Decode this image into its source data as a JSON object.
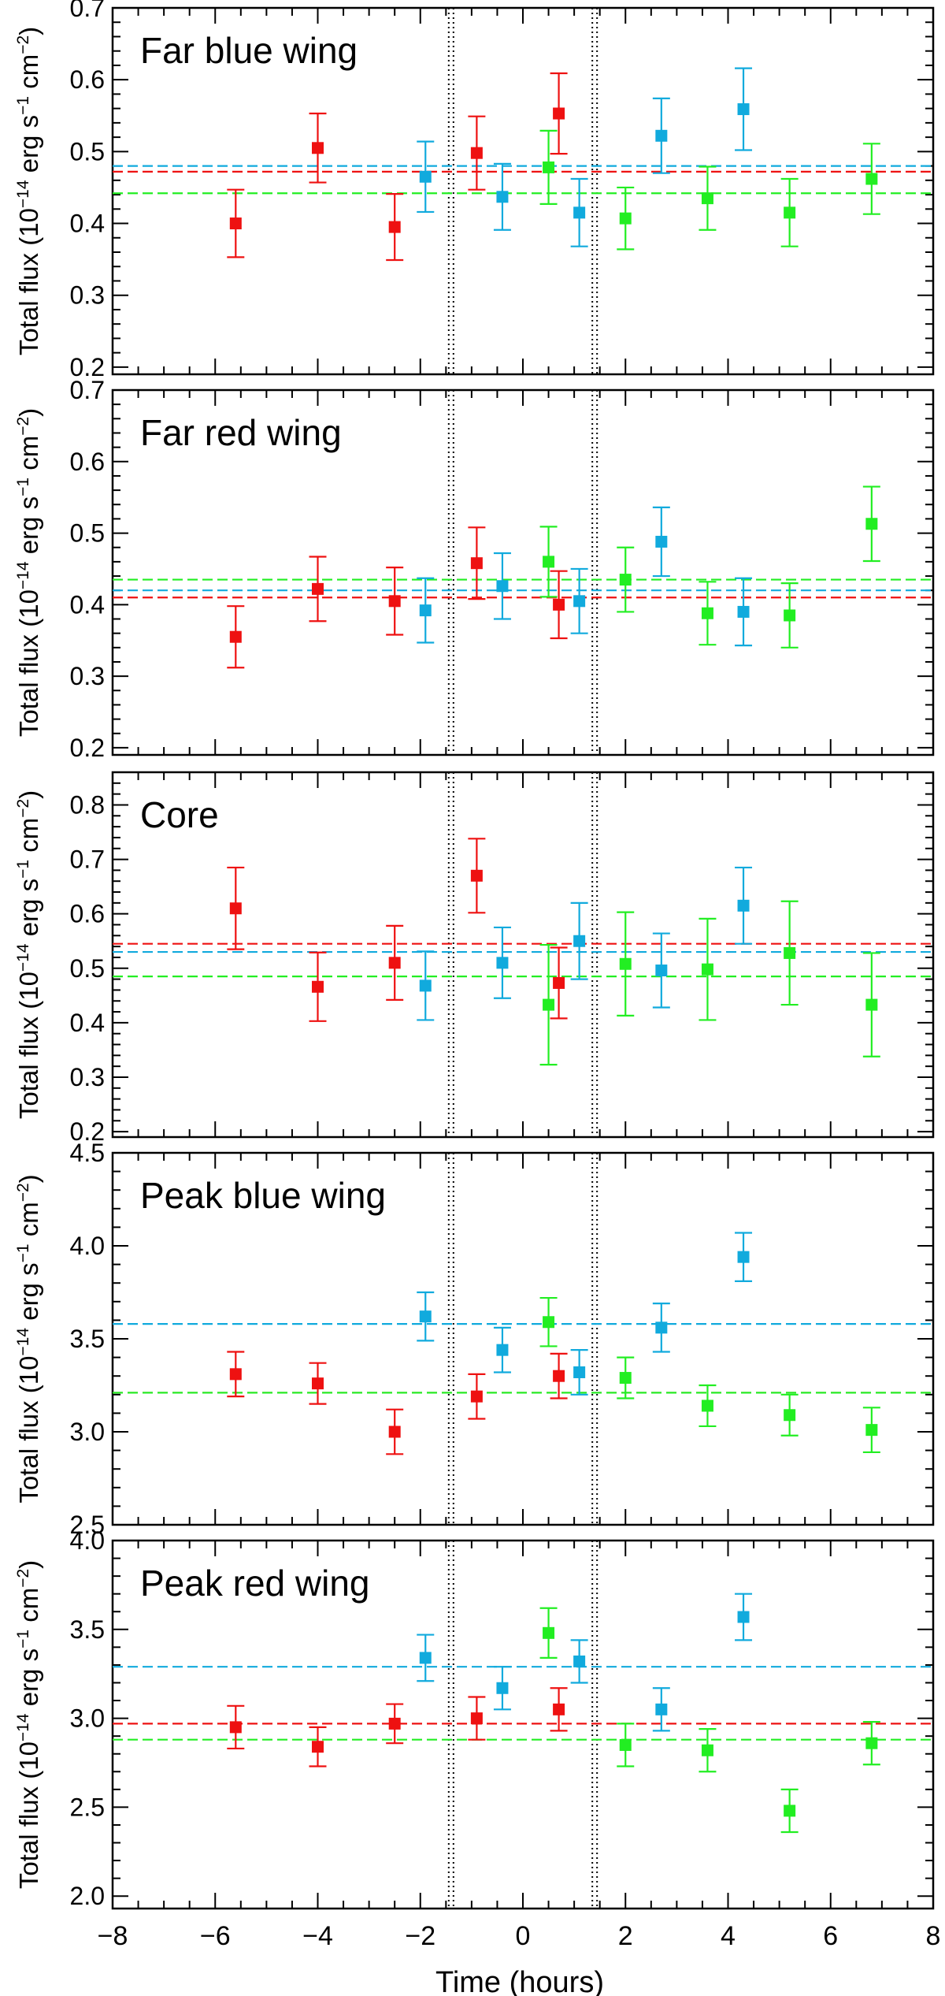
{
  "xaxis": {
    "label": "Time (hours)",
    "range": [
      -8,
      8
    ],
    "ticks": [
      -8,
      -6,
      -4,
      -2,
      0,
      2,
      4,
      6,
      8
    ],
    "tick_labels": [
      "−8",
      "−6",
      "−4",
      "−2",
      "0",
      "2",
      "4",
      "6",
      "8"
    ]
  },
  "ylabel": {
    "main": "Total flux (10",
    "exp1": "−14",
    "mid1": " erg s",
    "exp2": "−1",
    "mid2": " cm",
    "exp3": "−2",
    "end": ")"
  },
  "vlines": [
    -1.4,
    1.4
  ],
  "colors": {
    "red": "#ee1111",
    "blue": "#11aadd",
    "green": "#22ee22",
    "olive": "#8a6a22",
    "frame": "#000000"
  },
  "chart_data": [
    {
      "type": "scatter",
      "title": "Far blue wing",
      "ylim": [
        0.19,
        0.7
      ],
      "yticks": [
        0.2,
        0.3,
        0.4,
        0.5,
        0.6,
        0.7
      ],
      "ytick_labels": [
        "0.2",
        "0.3",
        "0.4",
        "0.5",
        "0.6",
        "0.7"
      ],
      "series": [
        {
          "name": "red",
          "color": "red",
          "mean": 0.472,
          "x": [
            -5.6,
            -4.0,
            -2.5,
            -0.9,
            0.7
          ],
          "y": [
            0.4,
            0.505,
            0.395,
            0.498,
            0.553
          ],
          "err": [
            0.047,
            0.048,
            0.046,
            0.051,
            0.056
          ]
        },
        {
          "name": "blue",
          "color": "blue",
          "mean": 0.48,
          "x": [
            -1.9,
            -0.4,
            1.1,
            2.7,
            4.3
          ],
          "y": [
            0.465,
            0.437,
            0.415,
            0.522,
            0.559
          ],
          "err": [
            0.049,
            0.046,
            0.047,
            0.052,
            0.057
          ]
        },
        {
          "name": "green",
          "color": "green",
          "mean": 0.442,
          "x": [
            0.5,
            2.0,
            3.6,
            5.2,
            6.8
          ],
          "y": [
            0.478,
            0.407,
            0.435,
            0.415,
            0.462
          ],
          "err": [
            0.051,
            0.043,
            0.044,
            0.047,
            0.049
          ]
        }
      ]
    },
    {
      "type": "scatter",
      "title": "Far red wing",
      "ylim": [
        0.19,
        0.7
      ],
      "yticks": [
        0.2,
        0.3,
        0.4,
        0.5,
        0.6,
        0.7
      ],
      "ytick_labels": [
        "0.2",
        "0.3",
        "0.4",
        "0.5",
        "0.6",
        "0.7"
      ],
      "series": [
        {
          "name": "red",
          "color": "red",
          "mean": 0.41,
          "x": [
            -5.6,
            -4.0,
            -2.5,
            -0.9,
            0.7
          ],
          "y": [
            0.355,
            0.422,
            0.405,
            0.458,
            0.4
          ],
          "err": [
            0.043,
            0.045,
            0.047,
            0.05,
            0.047
          ]
        },
        {
          "name": "blue",
          "color": "blue",
          "mean": 0.42,
          "x": [
            -1.9,
            -0.4,
            1.1,
            2.7,
            4.3
          ],
          "y": [
            0.392,
            0.426,
            0.405,
            0.488,
            0.39
          ],
          "err": [
            0.045,
            0.046,
            0.045,
            0.048,
            0.047
          ]
        },
        {
          "name": "green",
          "color": "green",
          "mean": 0.435,
          "x": [
            0.5,
            2.0,
            3.6,
            5.2,
            6.8
          ],
          "y": [
            0.46,
            0.435,
            0.388,
            0.385,
            0.513
          ],
          "err": [
            0.049,
            0.045,
            0.044,
            0.045,
            0.052
          ]
        }
      ]
    },
    {
      "type": "scatter",
      "title": "Core",
      "ylim": [
        0.19,
        0.86
      ],
      "yticks": [
        0.2,
        0.3,
        0.4,
        0.5,
        0.6,
        0.7,
        0.8
      ],
      "ytick_labels": [
        "0.2",
        "0.3",
        "0.4",
        "0.5",
        "0.6",
        "0.7",
        "0.8"
      ],
      "series": [
        {
          "name": "red",
          "color": "red",
          "mean": 0.545,
          "x": [
            -5.6,
            -4.0,
            -2.5,
            -0.9,
            0.7
          ],
          "y": [
            0.61,
            0.466,
            0.51,
            0.67,
            0.473
          ],
          "err": [
            0.075,
            0.063,
            0.068,
            0.068,
            0.065
          ]
        },
        {
          "name": "blue",
          "color": "blue",
          "mean": 0.53,
          "x": [
            -1.9,
            -0.4,
            1.1,
            2.7,
            4.3
          ],
          "y": [
            0.468,
            0.51,
            0.55,
            0.496,
            0.615
          ],
          "err": [
            0.063,
            0.065,
            0.07,
            0.068,
            0.07
          ]
        },
        {
          "name": "green",
          "color": "green",
          "mean": 0.485,
          "x": [
            0.5,
            2.0,
            3.6,
            5.2,
            6.8
          ],
          "y": [
            0.433,
            0.508,
            0.498,
            0.528,
            0.433
          ],
          "err": [
            0.11,
            0.095,
            0.093,
            0.095,
            0.095
          ]
        }
      ]
    },
    {
      "type": "scatter",
      "title": "Peak blue wing",
      "ylim": [
        2.5,
        4.5
      ],
      "yticks": [
        2.5,
        3.0,
        3.5,
        4.0,
        4.5
      ],
      "ytick_labels": [
        "2.5",
        "3.0",
        "3.5",
        "4.0",
        "4.5"
      ],
      "series": [
        {
          "name": "red",
          "color": "red",
          "mean": 3.21,
          "mean_color": "olive",
          "x": [
            -5.6,
            -4.0,
            -2.5,
            -0.9,
            0.7
          ],
          "y": [
            3.31,
            3.26,
            3.0,
            3.19,
            3.3
          ],
          "err": [
            0.12,
            0.11,
            0.12,
            0.12,
            0.12
          ]
        },
        {
          "name": "blue",
          "color": "blue",
          "mean": 3.58,
          "x": [
            -1.9,
            -0.4,
            1.1,
            2.7,
            4.3
          ],
          "y": [
            3.62,
            3.44,
            3.32,
            3.56,
            3.94
          ],
          "err": [
            0.13,
            0.12,
            0.12,
            0.13,
            0.13
          ]
        },
        {
          "name": "green",
          "color": "green",
          "mean": 3.21,
          "x": [
            0.5,
            2.0,
            3.6,
            5.2,
            6.8
          ],
          "y": [
            3.59,
            3.29,
            3.14,
            3.09,
            3.01
          ],
          "err": [
            0.13,
            0.11,
            0.11,
            0.11,
            0.12
          ]
        }
      ]
    },
    {
      "type": "scatter",
      "title": "Peak red wing",
      "ylim": [
        1.93,
        4.0
      ],
      "yticks": [
        2.0,
        2.5,
        3.0,
        3.5,
        4.0
      ],
      "ytick_labels": [
        "2.0",
        "2.5",
        "3.0",
        "3.5",
        "4.0"
      ],
      "series": [
        {
          "name": "red",
          "color": "red",
          "mean": 2.97,
          "x": [
            -5.6,
            -4.0,
            -2.5,
            -0.9,
            0.7
          ],
          "y": [
            2.95,
            2.84,
            2.97,
            3.0,
            3.05
          ],
          "err": [
            0.12,
            0.11,
            0.11,
            0.12,
            0.12
          ]
        },
        {
          "name": "blue",
          "color": "blue",
          "mean": 3.29,
          "x": [
            -1.9,
            -0.4,
            1.1,
            2.7,
            4.3
          ],
          "y": [
            3.34,
            3.17,
            3.32,
            3.05,
            3.57
          ],
          "err": [
            0.13,
            0.12,
            0.12,
            0.12,
            0.13
          ]
        },
        {
          "name": "green",
          "color": "green",
          "mean": 2.88,
          "x": [
            0.5,
            2.0,
            3.6,
            5.2,
            6.8
          ],
          "y": [
            3.48,
            2.85,
            2.82,
            2.48,
            2.86
          ],
          "err": [
            0.14,
            0.12,
            0.12,
            0.12,
            0.12
          ]
        }
      ]
    }
  ]
}
